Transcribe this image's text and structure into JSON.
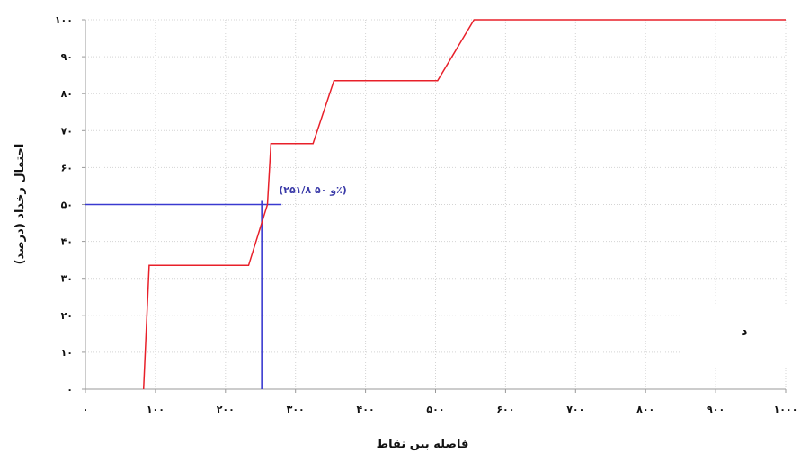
{
  "chart_data": {
    "type": "line",
    "xlabel": "فاصله بین نقاط",
    "ylabel": "احتمال رخداد (درصد)",
    "xlim": [
      0,
      1000
    ],
    "ylim": [
      0,
      100
    ],
    "x_ticks": [
      0,
      100,
      200,
      300,
      400,
      500,
      600,
      700,
      800,
      900,
      1000
    ],
    "x_tick_labels": [
      "۰",
      "۱۰۰",
      "۲۰۰",
      "۳۰۰",
      "۴۰۰",
      "۵۰۰",
      "۶۰۰",
      "۷۰۰",
      "۸۰۰",
      "۹۰۰",
      "۱۰۰۰"
    ],
    "y_ticks": [
      0,
      10,
      20,
      30,
      40,
      50,
      60,
      70,
      80,
      90,
      100
    ],
    "y_tick_labels": [
      "۰",
      "۱۰",
      "۲۰",
      "۳۰",
      "۴۰",
      "۵۰",
      "۶۰",
      "۷۰",
      "۸۰",
      "۹۰",
      "۱۰۰"
    ],
    "grid": true,
    "series": [
      {
        "color": "#e8202a",
        "x": [
          83,
          91,
          233,
          260,
          265,
          325,
          355,
          503,
          555,
          1000
        ],
        "y": [
          0,
          33.5,
          33.5,
          50,
          66.5,
          66.5,
          83.5,
          83.5,
          100,
          100
        ]
      }
    ],
    "reference": {
      "color": "#3a3ad0",
      "x": 251.8,
      "y": 50,
      "horizontal_x_range": [
        0,
        280
      ],
      "label": "(۲۵۱/۸ و ۵۰٪)"
    },
    "panel_label": "د"
  }
}
